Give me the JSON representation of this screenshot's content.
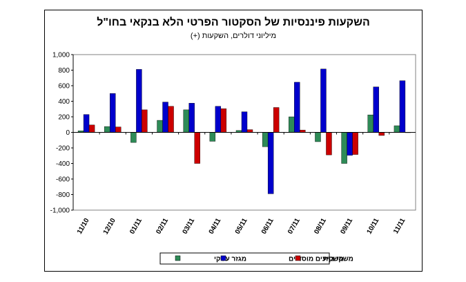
{
  "chart_data": {
    "type": "bar",
    "title": "השקעות פיננסיות של הסקטור הפרטי הלא בנקאי בחו\"ל",
    "subtitle": "מיליוני דולרים, השקעות (+)",
    "xlabel": "",
    "ylabel": "",
    "ylim": [
      -1000,
      1000
    ],
    "yticks": [
      "-1,000",
      "-800",
      "-600",
      "-400",
      "-200",
      "0",
      "200",
      "400",
      "600",
      "800",
      "1,000"
    ],
    "grid": true,
    "legend_position": "bottom",
    "categories": [
      "11/10",
      "12/10",
      "01/11",
      "02/11",
      "03/11",
      "04/11",
      "05/11",
      "06/11",
      "07/11",
      "08/11",
      "09/11",
      "10/11",
      "11/11"
    ],
    "series": [
      {
        "name": "מגזר עסקי",
        "color": "#2e8b57",
        "values": [
          20,
          75,
          -130,
          155,
          290,
          -115,
          25,
          -185,
          200,
          -120,
          -400,
          225,
          85
        ]
      },
      {
        "name": "משקיעים מוסדיים",
        "color": "#0000cc",
        "values": [
          230,
          500,
          810,
          390,
          375,
          335,
          265,
          -790,
          645,
          815,
          -295,
          585,
          665
        ]
      },
      {
        "name": "משקי בית",
        "color": "#cc0000",
        "values": [
          95,
          70,
          290,
          335,
          -400,
          305,
          35,
          320,
          30,
          -290,
          -285,
          -40,
          0
        ]
      }
    ]
  }
}
